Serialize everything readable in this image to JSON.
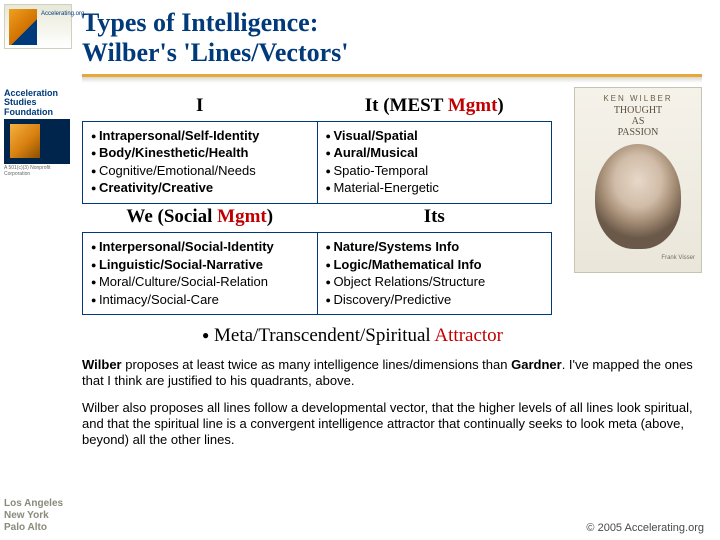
{
  "sidebar": {
    "topLogoLabel": "Accelerating.org",
    "asfTitle1": "Acceleration",
    "asfTitle2": "Studies",
    "asfTitle3": "Foundation",
    "asfSub": "A 501(c)(3) Nonprofit Corporation",
    "cities": [
      "Los Angeles",
      "New York",
      "Palo Alto"
    ]
  },
  "title": {
    "line1": "Types of Intelligence:",
    "line2": "Wilber's 'Lines/Vectors'"
  },
  "headers": {
    "q1": "I",
    "q2_plain": "It (MEST ",
    "q2_accent": "Mgmt",
    "q2_tail": ")",
    "q3_plain": "We (Social ",
    "q3_accent": "Mgmt",
    "q3_tail": ")",
    "q4": "Its"
  },
  "cells": {
    "q1": [
      {
        "text": "Intrapersonal/Self-Identity",
        "bold": true
      },
      {
        "text": "Body/Kinesthetic/Health",
        "bold": true
      },
      {
        "text": "Cognitive/Emotional/Needs",
        "bold": false
      },
      {
        "text": "Creativity/Creative",
        "bold": true
      }
    ],
    "q2": [
      {
        "text": "Visual/Spatial",
        "bold": true
      },
      {
        "text": "Aural/Musical",
        "bold": true
      },
      {
        "text": "Spatio-Temporal",
        "bold": false
      },
      {
        "text": "Material-Energetic",
        "bold": false
      }
    ],
    "q3": [
      {
        "text": "Interpersonal/Social-Identity",
        "bold": true
      },
      {
        "text": "Linguistic/Social-Narrative",
        "bold": true
      },
      {
        "text": "Moral/Culture/Social-Relation",
        "bold": false
      },
      {
        "text": "Intimacy/Social-Care",
        "bold": false
      }
    ],
    "q4": [
      {
        "text": "Nature/Systems Info",
        "bold": true
      },
      {
        "text": "Logic/Mathematical Info",
        "bold": true
      },
      {
        "text": "Object Relations/Structure",
        "bold": false
      },
      {
        "text": "Discovery/Predictive",
        "bold": false
      }
    ]
  },
  "metaLine": {
    "plain": "Meta/Transcendent/Spiritual ",
    "accent": "Attractor"
  },
  "para1_a": "Wilber",
  "para1_b": " proposes at least twice as many intelligence lines/dimensions than ",
  "para1_c": "Gardner",
  "para1_d": ". I've mapped the ones that I think are justified to his quadrants, above.",
  "para2": "Wilber also proposes all lines follow a developmental vector, that the higher levels of all lines look spiritual, and that the spiritual line is a convergent intelligence attractor that continually seeks to look meta (above, beyond) all the other lines.",
  "copyright": "© 2005 Accelerating.org",
  "book": {
    "author": "KEN WILBER",
    "title1": "THOUGHT",
    "title2": "AS",
    "title3": "PASSION",
    "footer": "Frank Visser"
  },
  "colors": {
    "titleColor": "#003a7a",
    "accent": "#c00000",
    "ruleOrange": "#e8a838",
    "border": "#003a7a"
  }
}
